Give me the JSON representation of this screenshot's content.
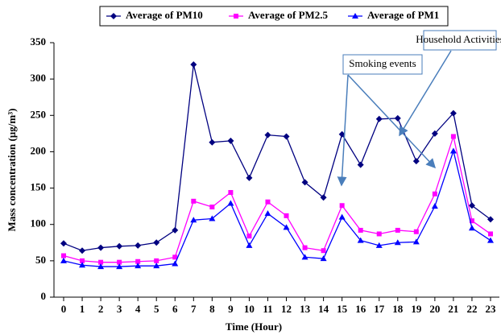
{
  "chart_data": {
    "type": "line",
    "xlabel": "Time (Hour)",
    "ylabel": "Mass concentration (µg/m³)",
    "categories": [
      "0",
      "1",
      "2",
      "3",
      "4",
      "5",
      "6",
      "7",
      "8",
      "9",
      "10",
      "11",
      "12",
      "13",
      "14",
      "15",
      "16",
      "17",
      "18",
      "19",
      "20",
      "21",
      "22",
      "23"
    ],
    "series": [
      {
        "name": "Average of PM10",
        "color": "#000080",
        "marker": "diamond",
        "values": [
          74,
          64,
          68,
          70,
          71,
          75,
          92,
          320,
          213,
          215,
          164,
          223,
          221,
          158,
          137,
          224,
          182,
          245,
          246,
          187,
          225,
          253,
          126,
          107
        ]
      },
      {
        "name": "Average of PM2.5",
        "color": "#ff00ff",
        "marker": "square",
        "values": [
          57,
          50,
          48,
          48,
          49,
          50,
          55,
          132,
          124,
          144,
          84,
          131,
          112,
          68,
          64,
          126,
          92,
          87,
          92,
          90,
          142,
          221,
          105,
          87
        ]
      },
      {
        "name": "Average of PM1",
        "color": "#0000ff",
        "marker": "triangle",
        "values": [
          50,
          44,
          42,
          42,
          43,
          43,
          46,
          106,
          108,
          129,
          71,
          115,
          96,
          55,
          53,
          110,
          78,
          71,
          75,
          76,
          125,
          201,
          95,
          78
        ]
      }
    ],
    "ylim": [
      0,
      350
    ],
    "yticks": [
      0,
      50,
      100,
      150,
      200,
      250,
      300,
      350
    ],
    "grid": false,
    "legend": "top",
    "annotations": [
      "Smoking events",
      "Household Activities"
    ]
  }
}
